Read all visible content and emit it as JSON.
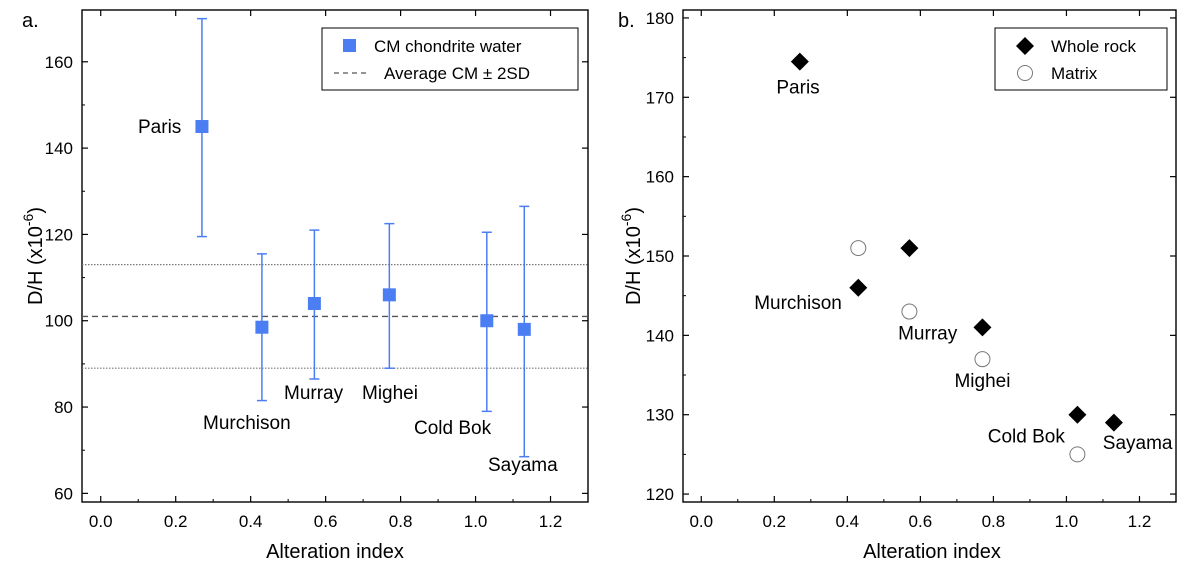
{
  "chart_data": [
    {
      "panel_label": "a.",
      "type": "scatter",
      "xlabel": "Alteration index",
      "ylabel": "D/H (x10",
      "ylabel_exp": "-6",
      "ylabel_close": ")",
      "xlim": [
        -0.05,
        1.3
      ],
      "ylim": [
        58,
        172
      ],
      "xticks": [
        "0.0",
        "0.2",
        "0.4",
        "0.6",
        "0.8",
        "1.0",
        "1.2"
      ],
      "yticks": [
        "60",
        "80",
        "100",
        "120",
        "140",
        "160"
      ],
      "legend": {
        "placement": "top-right",
        "entries": [
          {
            "label": "CM chondrite water",
            "marker": "square",
            "color": "#4c7ef3"
          },
          {
            "label": "Average CM ± 2SD",
            "marker": "dashed-line",
            "color": "#555555"
          }
        ]
      },
      "reference_lines": {
        "mean": 101,
        "upper": 113,
        "lower": 89
      },
      "series": [
        {
          "marker": "square",
          "color": "#4c7ef3",
          "points": [
            {
              "label": "Paris",
              "x": 0.27,
              "y": 145,
              "err_low": 119.5,
              "err_high": 170
            },
            {
              "label": "Murchison",
              "x": 0.43,
              "y": 98.5,
              "err_low": 81.5,
              "err_high": 115.5
            },
            {
              "label": "Murray",
              "x": 0.57,
              "y": 104,
              "err_low": 86.5,
              "err_high": 121
            },
            {
              "label": "Mighei",
              "x": 0.77,
              "y": 106,
              "err_low": 89,
              "err_high": 122.5
            },
            {
              "label": "Cold Bok",
              "x": 1.03,
              "y": 100,
              "err_low": 79,
              "err_high": 120.5
            },
            {
              "label": "Sayama",
              "x": 1.13,
              "y": 98,
              "err_low": 68.5,
              "err_high": 126.5
            }
          ]
        }
      ]
    },
    {
      "panel_label": "b.",
      "type": "scatter",
      "xlabel": "Alteration index",
      "ylabel": "D/H (x10",
      "ylabel_exp": "-6",
      "ylabel_close": ")",
      "xlim": [
        -0.05,
        1.3
      ],
      "ylim": [
        119,
        181
      ],
      "xticks": [
        "0.0",
        "0.2",
        "0.4",
        "0.6",
        "0.8",
        "1.0",
        "1.2"
      ],
      "yticks": [
        "120",
        "130",
        "140",
        "150",
        "160",
        "170",
        "180"
      ],
      "legend": {
        "placement": "top-right",
        "entries": [
          {
            "label": "Whole rock",
            "marker": "diamond",
            "color": "#000000"
          },
          {
            "label": "Matrix",
            "marker": "open-circle",
            "color": "#000000"
          }
        ]
      },
      "series": [
        {
          "name": "Whole rock",
          "marker": "diamond",
          "points": [
            {
              "x": 0.27,
              "y": 174.5
            },
            {
              "x": 0.43,
              "y": 146
            },
            {
              "x": 0.57,
              "y": 151
            },
            {
              "x": 0.77,
              "y": 141
            },
            {
              "x": 1.03,
              "y": 130
            },
            {
              "x": 1.13,
              "y": 129
            }
          ]
        },
        {
          "name": "Matrix",
          "marker": "open-circle",
          "points": [
            {
              "x": 0.43,
              "y": 151
            },
            {
              "x": 0.57,
              "y": 143
            },
            {
              "x": 0.77,
              "y": 137
            },
            {
              "x": 1.03,
              "y": 125
            }
          ]
        }
      ],
      "annotations": [
        {
          "text": "Paris",
          "x": 0.265,
          "y": 170.5
        },
        {
          "text": "Murchison",
          "x": 0.265,
          "y": 143.3
        },
        {
          "text": "Murray",
          "x": 0.62,
          "y": 139.5
        },
        {
          "text": "Mighei",
          "x": 0.77,
          "y": 133.5
        },
        {
          "text": "Cold Bok",
          "x": 0.89,
          "y": 126.5
        },
        {
          "text": "Sayama",
          "x": 1.195,
          "y": 125.7
        }
      ]
    }
  ]
}
